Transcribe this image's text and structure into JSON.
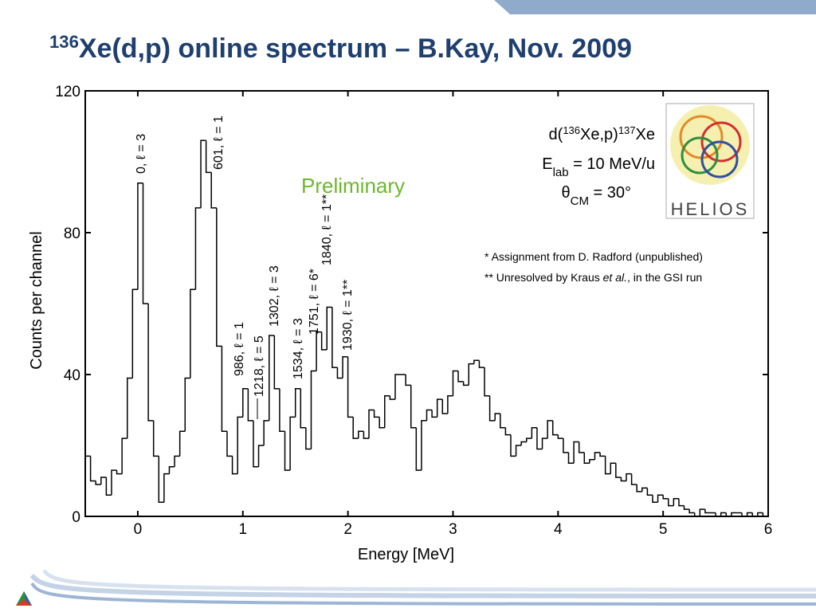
{
  "chart_data": {
    "type": "histogram",
    "title": [
      "136",
      "Xe(d,p) online spectrum – B.Kay, Nov. 2009"
    ],
    "x_label": "Energy [MeV]",
    "y_label": "Counts per channel",
    "xlim": [
      -0.5,
      6
    ],
    "xticks": [
      0,
      1,
      2,
      3,
      4,
      5,
      6
    ],
    "ylim": [
      0,
      120
    ],
    "yticks": [
      0,
      40,
      80,
      120
    ],
    "color": "#000000",
    "bins": [
      -0.5,
      -0.45,
      -0.4,
      -0.35,
      -0.3,
      -0.25,
      -0.2,
      -0.15,
      -0.1,
      -0.05,
      0,
      0.05,
      0.1,
      0.15,
      0.2,
      0.25,
      0.3,
      0.35,
      0.4,
      0.45,
      0.5,
      0.55,
      0.6,
      0.65,
      0.7,
      0.75,
      0.8,
      0.85,
      0.9,
      0.95,
      1,
      1.05,
      1.1,
      1.15,
      1.2,
      1.25,
      1.3,
      1.35,
      1.4,
      1.45,
      1.5,
      1.55,
      1.6,
      1.65,
      1.7,
      1.75,
      1.8,
      1.85,
      1.9,
      1.95,
      2,
      2.05,
      2.1,
      2.15,
      2.2,
      2.25,
      2.3,
      2.35,
      2.4,
      2.45,
      2.5,
      2.55,
      2.6,
      2.65,
      2.7,
      2.75,
      2.8,
      2.85,
      2.9,
      2.95,
      3,
      3.05,
      3.1,
      3.15,
      3.2,
      3.25,
      3.3,
      3.35,
      3.4,
      3.45,
      3.5,
      3.55,
      3.6,
      3.65,
      3.7,
      3.75,
      3.8,
      3.85,
      3.9,
      3.95,
      4,
      4.05,
      4.1,
      4.15,
      4.2,
      4.25,
      4.3,
      4.35,
      4.4,
      4.45,
      4.5,
      4.55,
      4.6,
      4.65,
      4.7,
      4.75,
      4.8,
      4.85,
      4.9,
      4.95,
      5,
      5.05,
      5.1,
      5.15,
      5.2,
      5.25,
      5.3,
      5.35,
      5.4,
      5.45,
      5.5,
      5.55,
      5.6,
      5.65,
      5.7,
      5.75,
      5.8,
      5.85,
      5.9,
      5.95,
      6
    ],
    "values": [
      17,
      10,
      9,
      11,
      6,
      13,
      12,
      22,
      39,
      64,
      94,
      60,
      27,
      17,
      4,
      12,
      14,
      17,
      24,
      39,
      64,
      87,
      106,
      97,
      87,
      48,
      24,
      17,
      12,
      28,
      36,
      27,
      14,
      20,
      27,
      51,
      36,
      24,
      13,
      28,
      36,
      25,
      19,
      41,
      52,
      47,
      59,
      42,
      39,
      45,
      28,
      22,
      24,
      22,
      30,
      28,
      25,
      34,
      33,
      40,
      40,
      37,
      25,
      13,
      27,
      30,
      28,
      33,
      29,
      34,
      41,
      38,
      37,
      43,
      44,
      42,
      34,
      27,
      29,
      25,
      23,
      17,
      20,
      21,
      22,
      25,
      19,
      22,
      27,
      23,
      22,
      18,
      15,
      21,
      18,
      15,
      16,
      18,
      17,
      12,
      15,
      11,
      10,
      12,
      9,
      7,
      8,
      6,
      4,
      6,
      5,
      3,
      5,
      3,
      2,
      1,
      0,
      2,
      1,
      1,
      0,
      1,
      0,
      1,
      1,
      0,
      1,
      0,
      1,
      0
    ],
    "peak_labels": [
      "0, ℓ = 3",
      "601, ℓ = 1",
      "986, ℓ = 1",
      "1218, ℓ = 5",
      "1302, ℓ = 3",
      "1534, ℓ = 3",
      "1751, ℓ = 6*",
      "1840, ℓ = 1**",
      "1930, ℓ = 1**"
    ],
    "preliminary": "Preliminary",
    "reaction": [
      "d(",
      "136",
      "Xe,p)",
      "137",
      "Xe"
    ],
    "energy": [
      "E",
      "lab",
      " = 10 MeV/u"
    ],
    "angle": [
      "θ",
      "CM",
      " = 30°"
    ],
    "footnotes": [
      [
        "* Assignment from D. Radford (unpublished)"
      ],
      [
        "** Unresolved by Kraus ",
        "et al.",
        ", in the GSI run"
      ]
    ],
    "logo": "HELIOS"
  }
}
